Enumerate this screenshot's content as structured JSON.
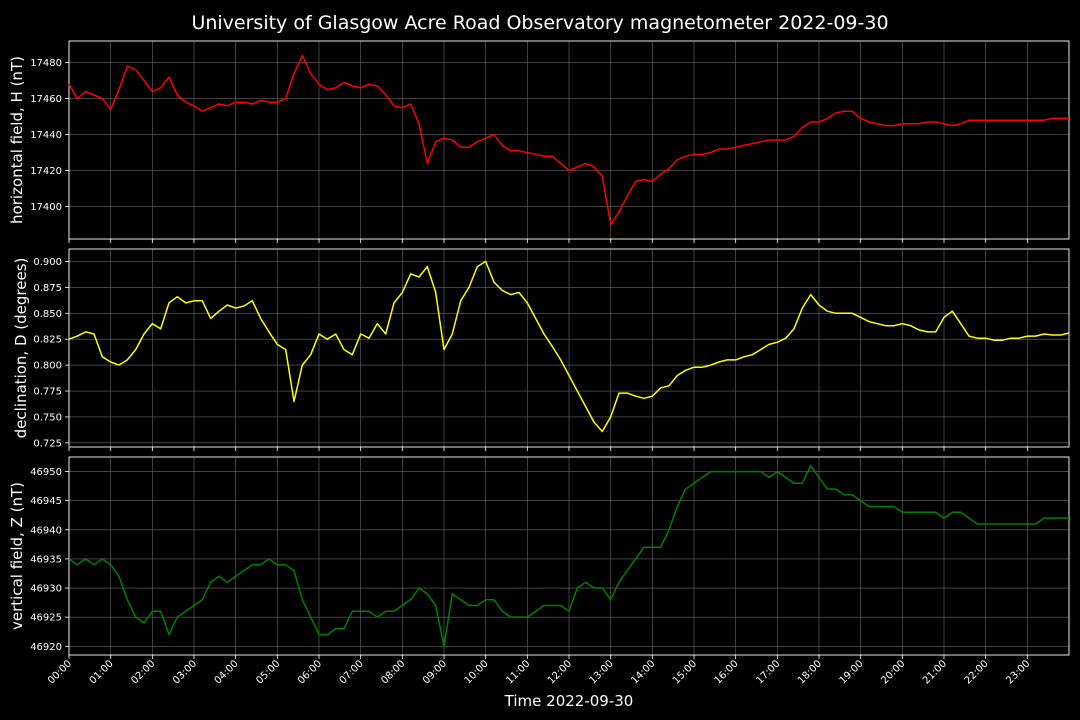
{
  "chart_data": {
    "type": "line",
    "title": "University of Glasgow Acre Road Observatory magnetometer 2022-09-30",
    "xlabel": "Time 2022-09-30",
    "x_ticks": [
      "00:00",
      "01:00",
      "02:00",
      "03:00",
      "04:00",
      "05:00",
      "06:00",
      "07:00",
      "08:00",
      "09:00",
      "10:00",
      "11:00",
      "12:00",
      "13:00",
      "14:00",
      "15:00",
      "16:00",
      "17:00",
      "18:00",
      "19:00",
      "20:00",
      "21:00",
      "22:00",
      "23:00"
    ],
    "xlim": [
      0,
      24
    ],
    "x_unit": "hours",
    "grid": true,
    "panels": [
      {
        "ylabel": "horizontal field, H (nT)",
        "color": "#ff0000",
        "ylim": [
          17382,
          17492
        ],
        "yticks": [
          "17400",
          "17420",
          "17440",
          "17460",
          "17480"
        ],
        "series": {
          "x": [
            0,
            0.2,
            0.4,
            0.6,
            0.8,
            1.0,
            1.2,
            1.4,
            1.6,
            1.8,
            2.0,
            2.2,
            2.4,
            2.6,
            2.8,
            3.0,
            3.2,
            3.4,
            3.6,
            3.8,
            4.0,
            4.2,
            4.4,
            4.6,
            4.8,
            5.0,
            5.2,
            5.4,
            5.6,
            5.8,
            6.0,
            6.2,
            6.4,
            6.6,
            6.8,
            7.0,
            7.2,
            7.4,
            7.6,
            7.8,
            8.0,
            8.2,
            8.4,
            8.6,
            8.8,
            9.0,
            9.2,
            9.4,
            9.6,
            9.8,
            10.0,
            10.2,
            10.4,
            10.6,
            10.8,
            11.0,
            11.2,
            11.4,
            11.6,
            11.8,
            12.0,
            12.2,
            12.4,
            12.6,
            12.8,
            13.0,
            13.2,
            13.4,
            13.6,
            13.8,
            14.0,
            14.2,
            14.4,
            14.6,
            14.8,
            15.0,
            15.2,
            15.4,
            15.6,
            15.8,
            16.0,
            16.2,
            16.4,
            16.6,
            16.8,
            17.0,
            17.2,
            17.4,
            17.6,
            17.8,
            18.0,
            18.2,
            18.4,
            18.6,
            18.8,
            19.0,
            19.2,
            19.4,
            19.6,
            19.8,
            20.0,
            20.2,
            20.4,
            20.6,
            20.8,
            21.0,
            21.2,
            21.4,
            21.6,
            21.8,
            22.0,
            22.2,
            22.4,
            22.6,
            22.8,
            23.0,
            23.2,
            23.4,
            23.6,
            23.8,
            24.0
          ],
          "y": [
            17468,
            17460,
            17464,
            17462,
            17460,
            17454,
            17465,
            17478,
            17476,
            17470,
            17464,
            17466,
            17472,
            17462,
            17458,
            17456,
            17453,
            17455,
            17457,
            17456,
            17458,
            17458,
            17457,
            17459,
            17458,
            17458,
            17460,
            17474,
            17484,
            17474,
            17468,
            17465,
            17466,
            17469,
            17467,
            17466,
            17468,
            17467,
            17462,
            17456,
            17455,
            17457,
            17446,
            17424,
            17436,
            17438,
            17437,
            17433,
            17433,
            17436,
            17438,
            17440,
            17434,
            17431,
            17431,
            17430,
            17429,
            17428,
            17428,
            17424,
            17420,
            17422,
            17424,
            17422,
            17417,
            17390,
            17397,
            17406,
            17414,
            17415,
            17414,
            17418,
            17421,
            17426,
            17428,
            17429,
            17429,
            17430,
            17432,
            17432,
            17433,
            17434,
            17435,
            17436,
            17437,
            17437,
            17437,
            17439,
            17444,
            17447,
            17447,
            17449,
            17452,
            17453,
            17453,
            17449,
            17447,
            17446,
            17445,
            17445,
            17446,
            17446,
            17446,
            17447,
            17447,
            17446,
            17445,
            17446,
            17448,
            17448,
            17448,
            17448,
            17448,
            17448,
            17448,
            17448,
            17448,
            17448,
            17449,
            17449,
            17449
          ]
        }
      },
      {
        "ylabel": "declination, D (degrees)",
        "color": "#ffff00",
        "ylim": [
          0.721,
          0.912
        ],
        "yticks": [
          "0.725",
          "0.750",
          "0.775",
          "0.800",
          "0.825",
          "0.850",
          "0.875",
          "0.900"
        ],
        "series": {
          "x": [
            0,
            0.2,
            0.4,
            0.6,
            0.8,
            1.0,
            1.2,
            1.4,
            1.6,
            1.8,
            2.0,
            2.2,
            2.4,
            2.6,
            2.8,
            3.0,
            3.2,
            3.4,
            3.6,
            3.8,
            4.0,
            4.2,
            4.4,
            4.6,
            4.8,
            5.0,
            5.2,
            5.4,
            5.6,
            5.8,
            6.0,
            6.2,
            6.4,
            6.6,
            6.8,
            7.0,
            7.2,
            7.4,
            7.6,
            7.8,
            8.0,
            8.2,
            8.4,
            8.6,
            8.8,
            9.0,
            9.2,
            9.4,
            9.6,
            9.8,
            10.0,
            10.2,
            10.4,
            10.6,
            10.8,
            11.0,
            11.2,
            11.4,
            11.6,
            11.8,
            12.0,
            12.2,
            12.4,
            12.6,
            12.8,
            13.0,
            13.2,
            13.4,
            13.6,
            13.8,
            14.0,
            14.2,
            14.4,
            14.6,
            14.8,
            15.0,
            15.2,
            15.4,
            15.6,
            15.8,
            16.0,
            16.2,
            16.4,
            16.6,
            16.8,
            17.0,
            17.2,
            17.4,
            17.6,
            17.8,
            18.0,
            18.2,
            18.4,
            18.6,
            18.8,
            19.0,
            19.2,
            19.4,
            19.6,
            19.8,
            20.0,
            20.2,
            20.4,
            20.6,
            20.8,
            21.0,
            21.2,
            21.4,
            21.6,
            21.8,
            22.0,
            22.2,
            22.4,
            22.6,
            22.8,
            23.0,
            23.2,
            23.4,
            23.6,
            23.8,
            24.0
          ],
          "y": [
            0.825,
            0.828,
            0.832,
            0.83,
            0.808,
            0.803,
            0.8,
            0.805,
            0.815,
            0.83,
            0.84,
            0.835,
            0.86,
            0.866,
            0.86,
            0.862,
            0.862,
            0.845,
            0.852,
            0.858,
            0.855,
            0.857,
            0.862,
            0.845,
            0.832,
            0.82,
            0.815,
            0.765,
            0.8,
            0.81,
            0.83,
            0.825,
            0.83,
            0.815,
            0.81,
            0.83,
            0.826,
            0.84,
            0.83,
            0.86,
            0.87,
            0.888,
            0.885,
            0.895,
            0.87,
            0.815,
            0.83,
            0.862,
            0.875,
            0.895,
            0.9,
            0.88,
            0.872,
            0.868,
            0.87,
            0.86,
            0.845,
            0.83,
            0.818,
            0.805,
            0.79,
            0.775,
            0.76,
            0.745,
            0.736,
            0.75,
            0.773,
            0.773,
            0.77,
            0.768,
            0.77,
            0.778,
            0.78,
            0.79,
            0.795,
            0.798,
            0.798,
            0.8,
            0.803,
            0.805,
            0.805,
            0.808,
            0.81,
            0.815,
            0.82,
            0.822,
            0.826,
            0.835,
            0.855,
            0.868,
            0.858,
            0.852,
            0.85,
            0.85,
            0.85,
            0.846,
            0.842,
            0.84,
            0.838,
            0.838,
            0.84,
            0.838,
            0.834,
            0.832,
            0.832,
            0.846,
            0.852,
            0.84,
            0.828,
            0.826,
            0.826,
            0.824,
            0.824,
            0.826,
            0.826,
            0.828,
            0.828,
            0.83,
            0.829,
            0.829,
            0.831
          ]
        }
      },
      {
        "ylabel": "vertical field, Z (nT)",
        "color": "#008000",
        "ylim": [
          46918.5,
          46952.5
        ],
        "yticks": [
          "46920",
          "46925",
          "46930",
          "46935",
          "46940",
          "46945",
          "46950"
        ],
        "series": {
          "x": [
            0,
            0.2,
            0.4,
            0.6,
            0.8,
            1.0,
            1.2,
            1.4,
            1.6,
            1.8,
            2.0,
            2.2,
            2.4,
            2.6,
            2.8,
            3.0,
            3.2,
            3.4,
            3.6,
            3.8,
            4.0,
            4.2,
            4.4,
            4.6,
            4.8,
            5.0,
            5.2,
            5.4,
            5.6,
            5.8,
            6.0,
            6.2,
            6.4,
            6.6,
            6.8,
            7.0,
            7.2,
            7.4,
            7.6,
            7.8,
            8.0,
            8.2,
            8.4,
            8.6,
            8.8,
            9.0,
            9.2,
            9.4,
            9.6,
            9.8,
            10.0,
            10.2,
            10.4,
            10.6,
            10.8,
            11.0,
            11.2,
            11.4,
            11.6,
            11.8,
            12.0,
            12.2,
            12.4,
            12.6,
            12.8,
            13.0,
            13.2,
            13.4,
            13.6,
            13.8,
            14.0,
            14.2,
            14.4,
            14.6,
            14.8,
            15.0,
            15.2,
            15.4,
            15.6,
            15.8,
            16.0,
            16.2,
            16.4,
            16.6,
            16.8,
            17.0,
            17.2,
            17.4,
            17.6,
            17.8,
            18.0,
            18.2,
            18.4,
            18.6,
            18.8,
            19.0,
            19.2,
            19.4,
            19.6,
            19.8,
            20.0,
            20.2,
            20.4,
            20.6,
            20.8,
            21.0,
            21.2,
            21.4,
            21.6,
            21.8,
            22.0,
            22.2,
            22.4,
            22.6,
            22.8,
            23.0,
            23.2,
            23.4,
            23.6,
            23.8,
            24.0
          ],
          "y": [
            46935,
            46934,
            46935,
            46934,
            46935,
            46934,
            46932,
            46928,
            46925,
            46924,
            46926,
            46926,
            46922,
            46925,
            46926,
            46927,
            46928,
            46931,
            46932,
            46931,
            46932,
            46933,
            46934,
            46934,
            46935,
            46934,
            46934,
            46933,
            46928,
            46925,
            46922,
            46922,
            46923,
            46923,
            46926,
            46926,
            46926,
            46925,
            46926,
            46926,
            46927,
            46928,
            46930,
            46929,
            46927,
            46920,
            46929,
            46928,
            46927,
            46927,
            46928,
            46928,
            46926,
            46925,
            46925,
            46925,
            46926,
            46927,
            46927,
            46927,
            46926,
            46930,
            46931,
            46930,
            46930,
            46928,
            46931,
            46933,
            46935,
            46937,
            46937,
            46937,
            46940,
            46944,
            46947,
            46948,
            46949,
            46950,
            46950,
            46950,
            46950,
            46950,
            46950,
            46950,
            46949,
            46950,
            46949,
            46948,
            46948,
            46951,
            46949,
            46947,
            46947,
            46946,
            46946,
            46945,
            46944,
            46944,
            46944,
            46944,
            46943,
            46943,
            46943,
            46943,
            46943,
            46942,
            46943,
            46943,
            46942,
            46941,
            46941,
            46941,
            46941,
            46941,
            46941,
            46941,
            46941,
            46942,
            46942,
            46942,
            46942
          ]
        }
      }
    ]
  }
}
